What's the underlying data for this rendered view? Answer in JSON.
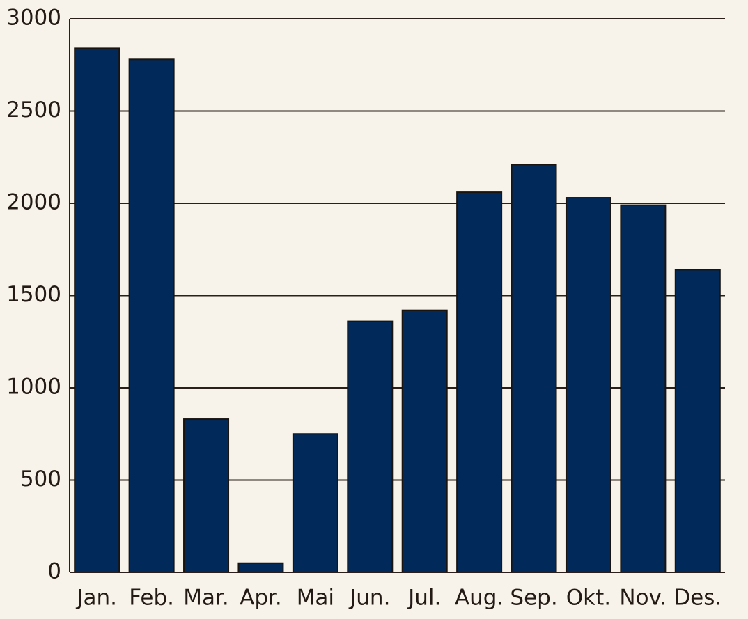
{
  "chart_data": {
    "type": "bar",
    "categories": [
      "Jan.",
      "Feb.",
      "Mar.",
      "Apr.",
      "Mai",
      "Jun.",
      "Jul.",
      "Aug.",
      "Sep.",
      "Okt.",
      "Nov.",
      "Des."
    ],
    "values": [
      2840,
      2780,
      830,
      50,
      750,
      1360,
      1420,
      2060,
      2210,
      2030,
      1990,
      1640
    ],
    "color": "#012a5b",
    "ylim": [
      0,
      3000
    ],
    "yticks": [
      0,
      500,
      1000,
      1500,
      2000,
      2500,
      3000
    ],
    "grid": true
  }
}
